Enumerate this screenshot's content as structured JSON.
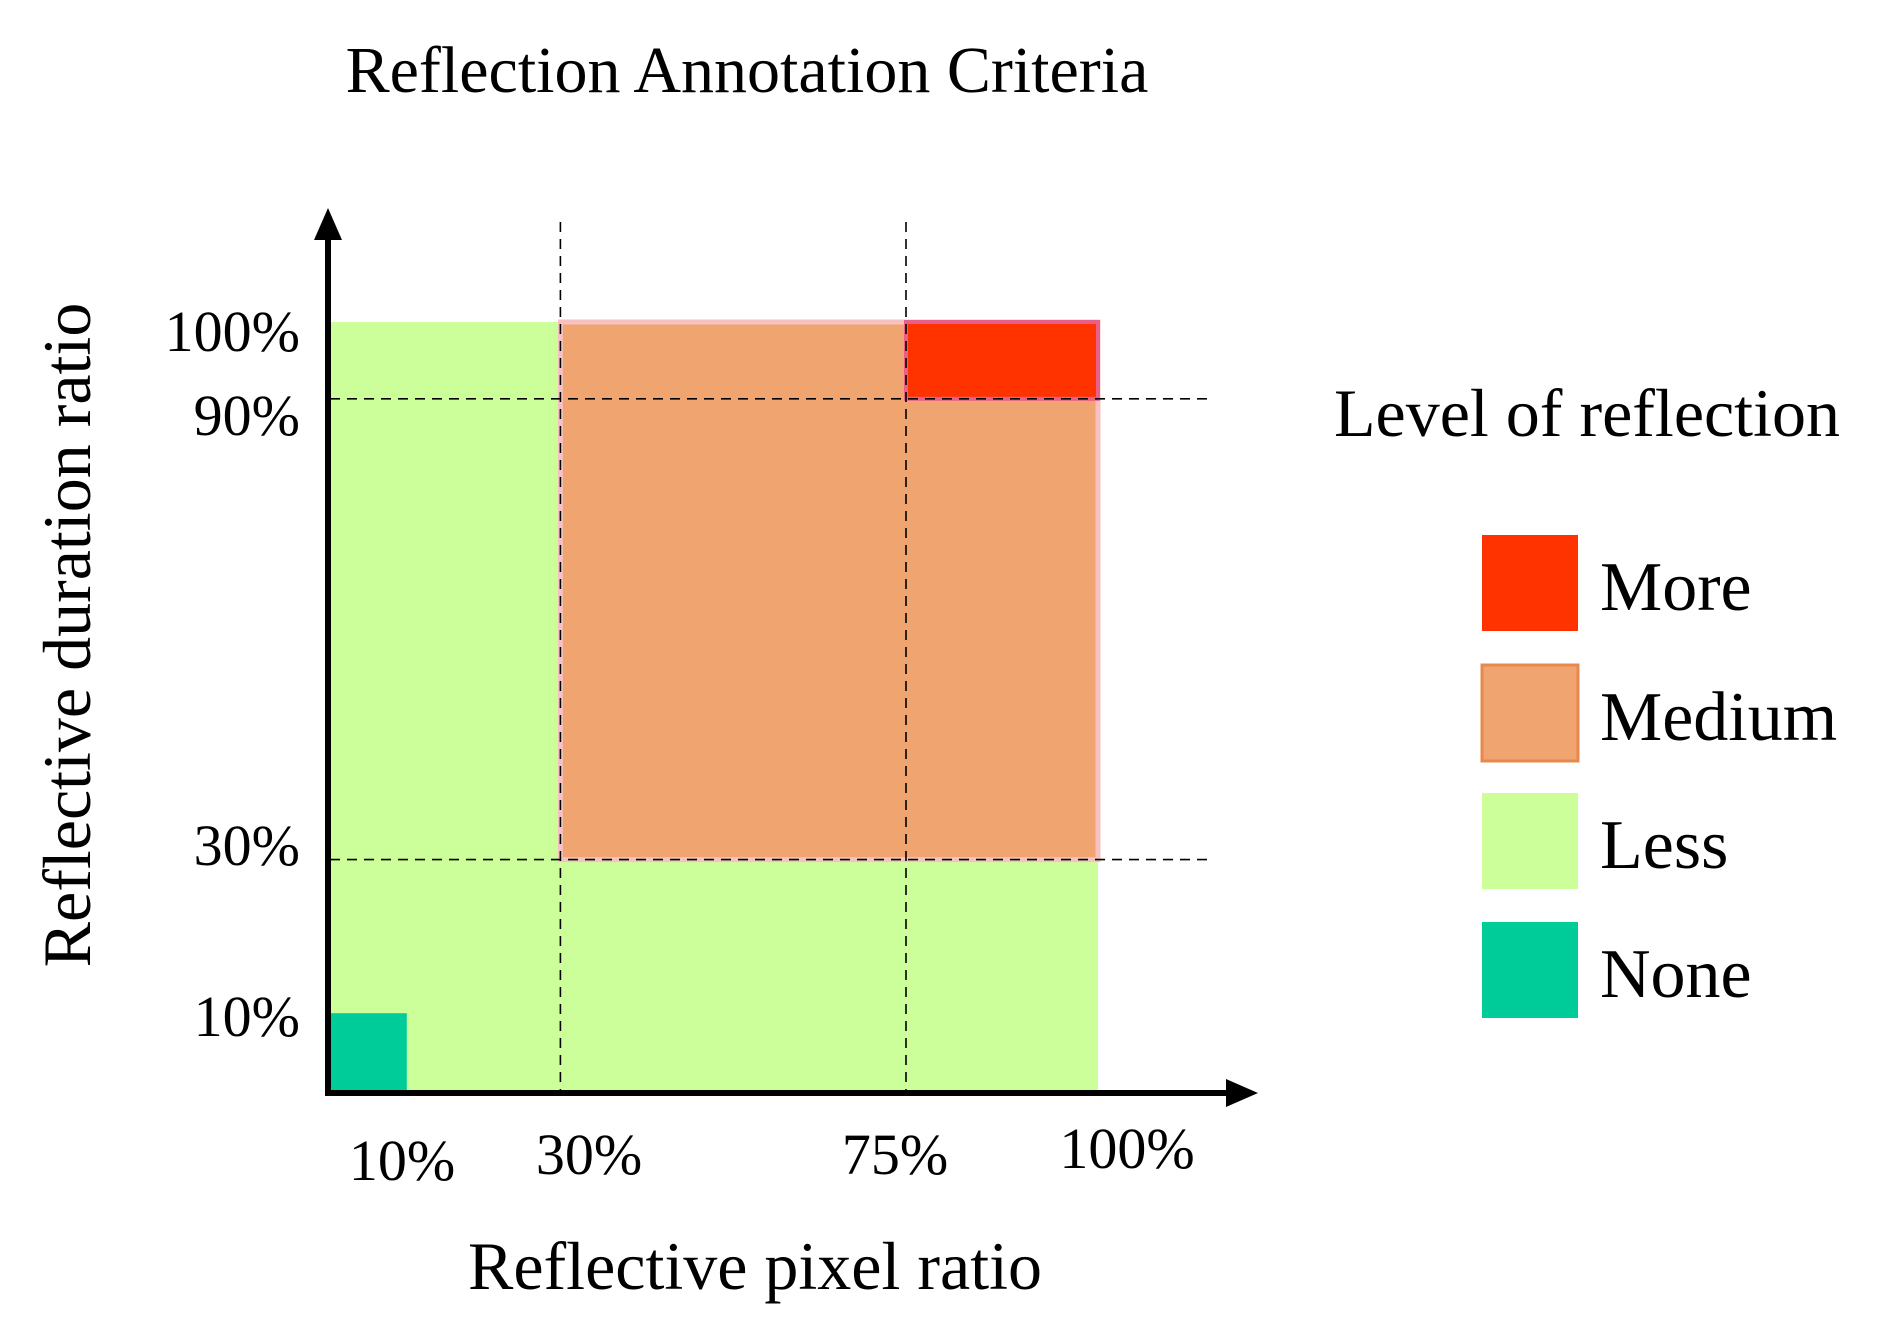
{
  "title": "Reflection Annotation Criteria",
  "axes": {
    "x_label": "Reflective pixel ratio",
    "y_label": "Reflective duration ratio",
    "x_ticks": [
      {
        "value": 10,
        "label": "10%"
      },
      {
        "value": 30,
        "label": "30%"
      },
      {
        "value": 75,
        "label": "75%"
      },
      {
        "value": 100,
        "label": "100%"
      }
    ],
    "y_ticks": [
      {
        "value": 100,
        "label": "100%"
      },
      {
        "value": 90,
        "label": "90%"
      },
      {
        "value": 30,
        "label": "30%"
      },
      {
        "value": 10,
        "label": "10%"
      }
    ]
  },
  "regions": [
    {
      "level": "Less",
      "x": [
        0,
        100
      ],
      "y": [
        0,
        100
      ],
      "color": "#ccff99"
    },
    {
      "level": "Medium",
      "x": [
        30,
        100
      ],
      "y": [
        30,
        100
      ],
      "color": "#f0a46f"
    },
    {
      "level": "More",
      "x": [
        75,
        100
      ],
      "y": [
        90,
        100
      ],
      "color": "#ff3300"
    },
    {
      "level": "None",
      "x": [
        0,
        10
      ],
      "y": [
        0,
        10
      ],
      "color": "#00cc99"
    }
  ],
  "legend": {
    "title": "Level of reflection",
    "items": [
      {
        "label": "More",
        "color": "#ff3300"
      },
      {
        "label": "Medium",
        "color": "#f0a46f"
      },
      {
        "label": "Less",
        "color": "#ccff99"
      },
      {
        "label": "None",
        "color": "#00cc99"
      }
    ]
  }
}
